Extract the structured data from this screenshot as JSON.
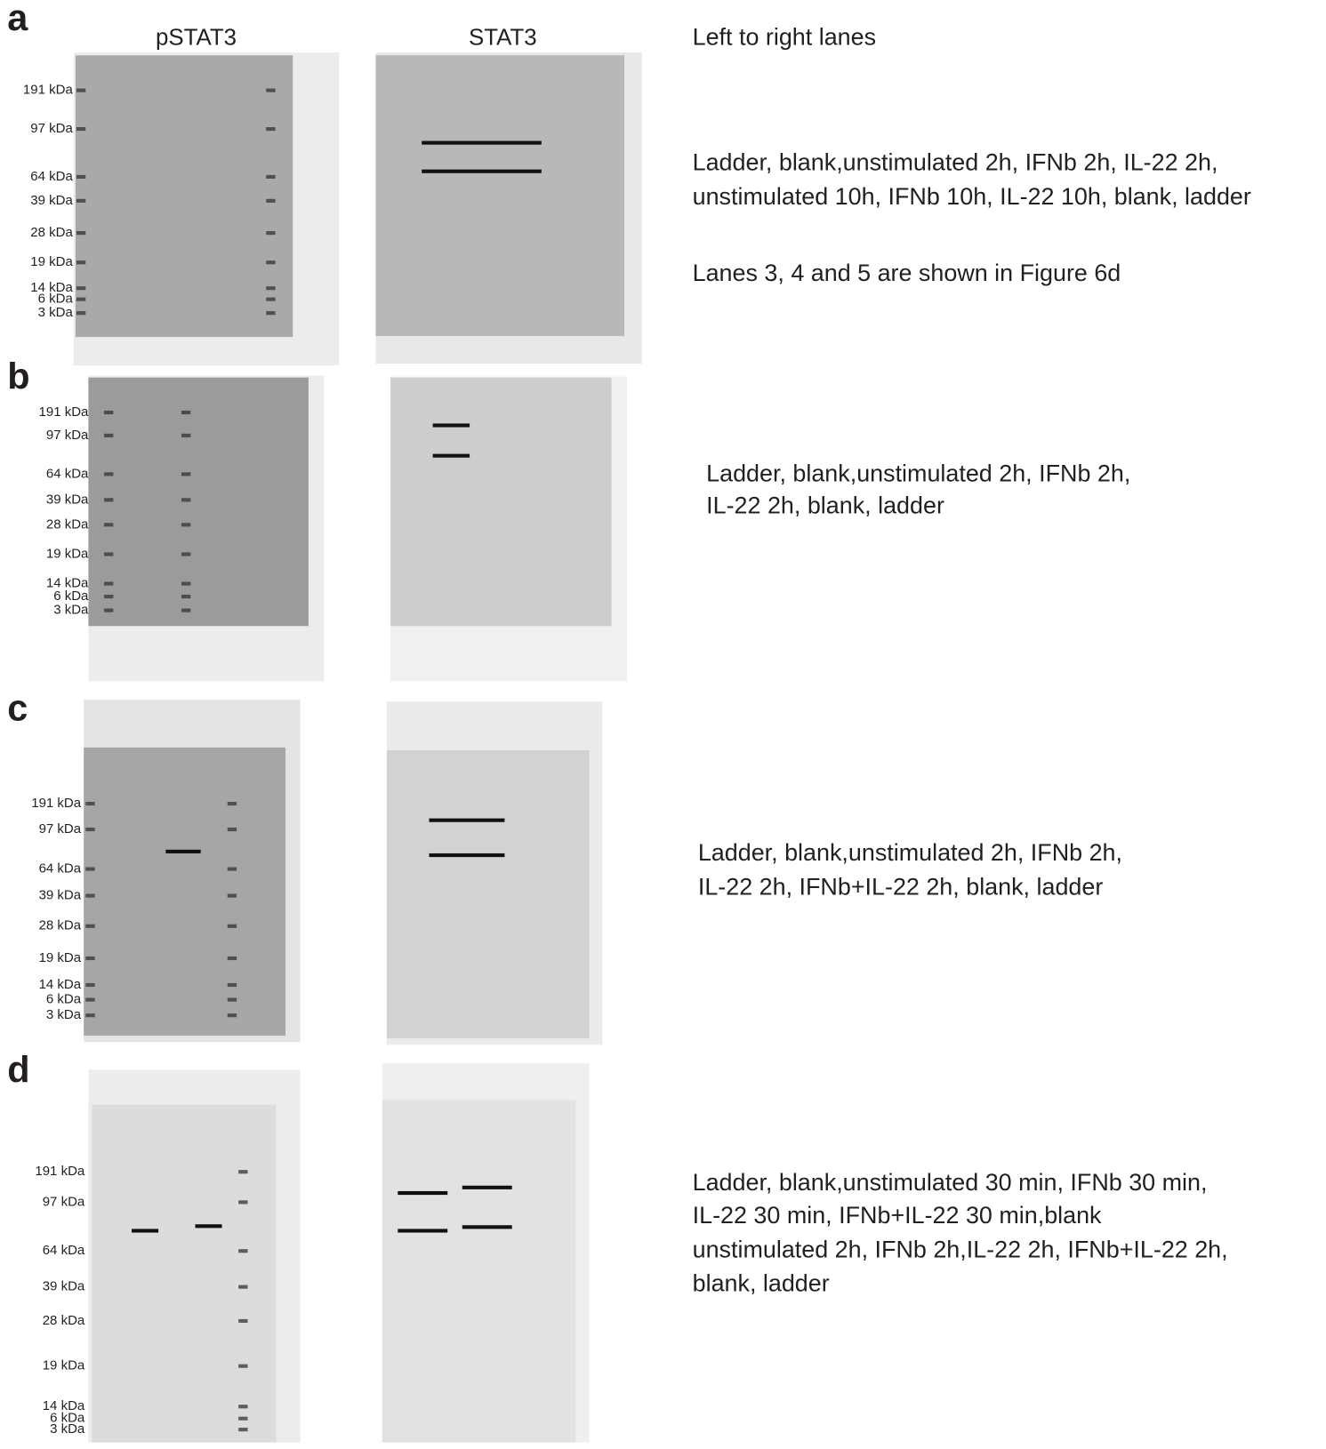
{
  "column_headers": [
    "pSTAT3",
    "STAT3"
  ],
  "panels": [
    {
      "label": "a",
      "markers": [
        "191 kDa",
        "97 kDa",
        "64 kDa",
        "39 kDa",
        "28 kDa",
        "19 kDa",
        "14 kDa",
        "6 kDa",
        "3 kDa"
      ],
      "notes": [
        "Left to right lanes",
        "Ladder, blank,unstimulated 2h, IFNb 2h, IL-22 2h,",
        "unstimulated 10h, IFNb 10h, IL-22 10h, blank, ladder",
        "Lanes 3, 4 and 5 are shown in Figure 6d"
      ]
    },
    {
      "label": "b",
      "markers": [
        "191 kDa",
        "97 kDa",
        "64 kDa",
        "39 kDa",
        "28 kDa",
        "19 kDa",
        "14 kDa",
        "6 kDa",
        "3 kDa"
      ],
      "notes": [
        "Ladder, blank,unstimulated 2h, IFNb 2h,",
        "IL-22 2h, blank, ladder"
      ]
    },
    {
      "label": "c",
      "markers": [
        "191 kDa",
        "97 kDa",
        "64 kDa",
        "39 kDa",
        "28 kDa",
        "19 kDa",
        "14 kDa",
        "6 kDa",
        "3 kDa"
      ],
      "notes": [
        "Ladder, blank,unstimulated 2h, IFNb 2h,",
        "IL-22 2h, IFNb+IL-22 2h, blank, ladder"
      ]
    },
    {
      "label": "d",
      "markers": [
        "191 kDa",
        "97 kDa",
        "64 kDa",
        "39 kDa",
        "28 kDa",
        "19 kDa",
        "14 kDa",
        "6 kDa",
        "3 kDa"
      ],
      "notes": [
        "Ladder, blank,unstimulated 30 min, IFNb 30 min,",
        "IL-22 30 min, IFNb+IL-22 30 min,blank",
        "unstimulated 2h, IFNb 2h,IL-22 2h, IFNb+IL-22 2h,",
        "blank, ladder"
      ]
    }
  ]
}
